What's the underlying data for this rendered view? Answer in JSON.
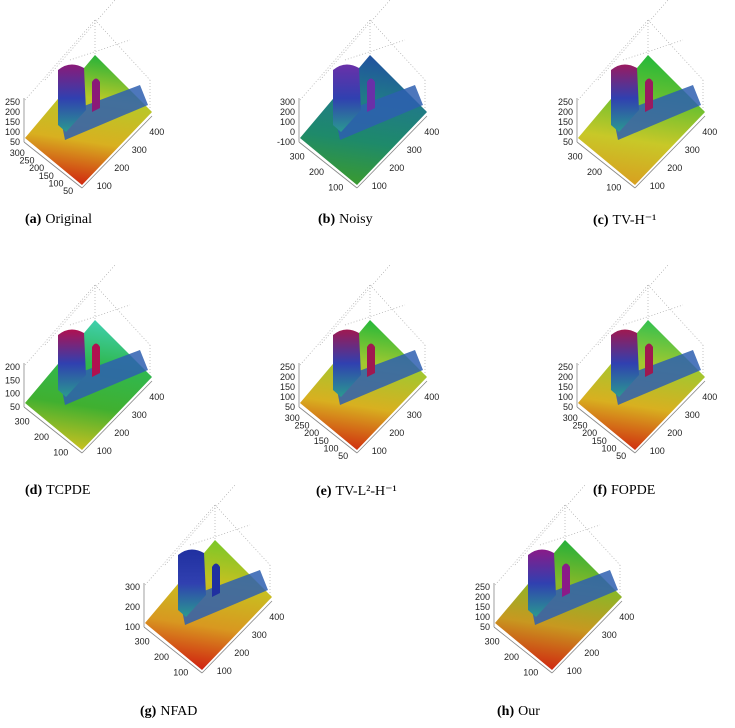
{
  "figure": {
    "panels": [
      {
        "label": "(a)",
        "name": "Original",
        "z_ticks": [
          "250",
          "200",
          "150",
          "100",
          "50"
        ],
        "y_ticks": [
          "300",
          "250",
          "200",
          "150",
          "100",
          "50"
        ],
        "x_ticks": [
          "400",
          "300",
          "200",
          "100"
        ],
        "colors": [
          "#22b23a",
          "#b8c828",
          "#d8b020",
          "#d02810"
        ],
        "peak": "#8a1a78"
      },
      {
        "label": "(b)",
        "name": "Noisy",
        "z_ticks": [
          "300",
          "200",
          "100",
          "0",
          "-100"
        ],
        "y_ticks": [
          "300",
          "200",
          "100"
        ],
        "x_ticks": [
          "400",
          "300",
          "200",
          "100"
        ],
        "colors": [
          "#2050a0",
          "#207a88",
          "#1e8a6a",
          "#3a9a30"
        ],
        "peak": "#6a30a8"
      },
      {
        "label": "(c)",
        "name": "TV-H⁻¹",
        "z_ticks": [
          "250",
          "200",
          "150",
          "100",
          "50"
        ],
        "y_ticks": [
          "300",
          "200",
          "100"
        ],
        "x_ticks": [
          "400",
          "300",
          "200",
          "100"
        ],
        "colors": [
          "#22b83a",
          "#6ac030",
          "#c8c828",
          "#d8a020"
        ],
        "peak": "#9a1a60"
      },
      {
        "label": "(d)",
        "name": "TCPDE",
        "z_ticks": [
          "200",
          "150",
          "100",
          "50"
        ],
        "y_ticks": [
          "300",
          "200",
          "100"
        ],
        "x_ticks": [
          "400",
          "300",
          "200",
          "100"
        ],
        "colors": [
          "#40d0b0",
          "#30b850",
          "#40b030",
          "#c8c020"
        ],
        "peak": "#b01050"
      },
      {
        "label": "(e)",
        "name": "TV-L²-H⁻¹",
        "z_ticks": [
          "250",
          "200",
          "150",
          "100",
          "50"
        ],
        "y_ticks": [
          "300",
          "250",
          "200",
          "150",
          "100",
          "50"
        ],
        "x_ticks": [
          "400",
          "300",
          "200",
          "100"
        ],
        "colors": [
          "#22b83a",
          "#a0c830",
          "#d8b020",
          "#d03010"
        ],
        "peak": "#a01850"
      },
      {
        "label": "(f)",
        "name": "FOPDE",
        "z_ticks": [
          "250",
          "200",
          "150",
          "100",
          "50"
        ],
        "y_ticks": [
          "300",
          "250",
          "200",
          "150",
          "100",
          "50"
        ],
        "x_ticks": [
          "400",
          "300",
          "200",
          "100"
        ],
        "colors": [
          "#30c050",
          "#a0c830",
          "#d8b020",
          "#d03010"
        ],
        "peak": "#a01850"
      },
      {
        "label": "(g)",
        "name": "NFAD",
        "z_ticks": [
          "300",
          "200",
          "100"
        ],
        "y_ticks": [
          "300",
          "200",
          "100"
        ],
        "x_ticks": [
          "400",
          "300",
          "200",
          "100"
        ],
        "colors": [
          "#78c828",
          "#c8c020",
          "#d89820",
          "#d02010"
        ],
        "peak": "#2030a0"
      },
      {
        "label": "(h)",
        "name": "Our",
        "z_ticks": [
          "250",
          "200",
          "150",
          "100",
          "50"
        ],
        "y_ticks": [
          "300",
          "200",
          "100"
        ],
        "x_ticks": [
          "400",
          "300",
          "200",
          "100"
        ],
        "colors": [
          "#22b03a",
          "#88b828",
          "#c89820",
          "#d02810"
        ],
        "peak": "#8a1a88"
      }
    ]
  }
}
